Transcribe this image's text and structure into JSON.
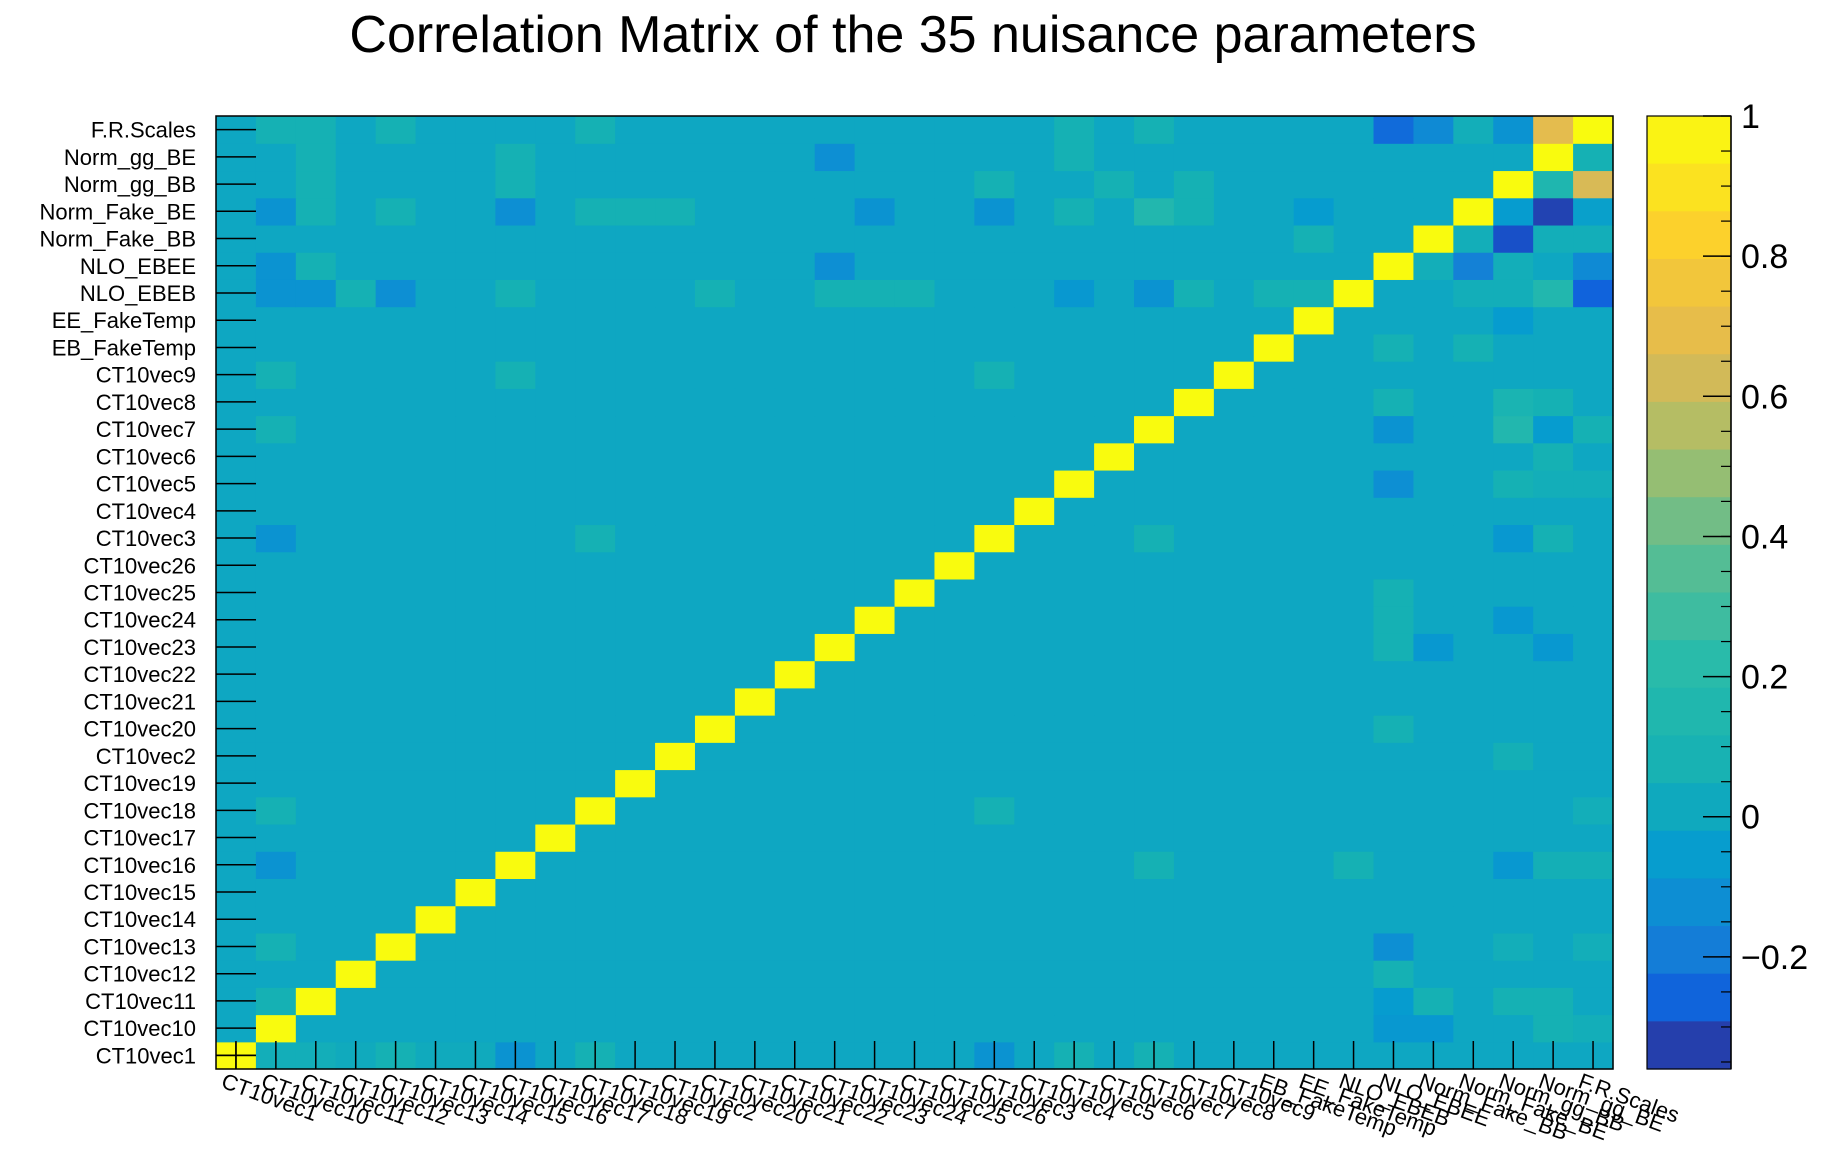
{
  "chart_data": {
    "type": "heatmap",
    "title": "Correlation Matrix of the 35 nuisance parameters",
    "labels": [
      "CT10vec1",
      "CT10vec10",
      "CT10vec11",
      "CT10vec12",
      "CT10vec13",
      "CT10vec14",
      "CT10vec15",
      "CT10vec16",
      "CT10vec17",
      "CT10vec18",
      "CT10vec19",
      "CT10vec2",
      "CT10vec20",
      "CT10vec21",
      "CT10vec22",
      "CT10vec23",
      "CT10vec24",
      "CT10vec25",
      "CT10vec26",
      "CT10vec3",
      "CT10vec4",
      "CT10vec5",
      "CT10vec6",
      "CT10vec7",
      "CT10vec8",
      "CT10vec9",
      "EB_FakeTemp",
      "EE_FakeTemp",
      "NLO_EBEB",
      "NLO_EBEE",
      "Norm_Fake_BB",
      "Norm_Fake_BE",
      "Norm_gg_BB",
      "Norm_gg_BE",
      "F.R.Scales"
    ],
    "zlim": [
      -0.36,
      1.0
    ],
    "z_ticks": [
      "1",
      "0.8",
      "0.6",
      "0.4",
      "0.2",
      "0",
      "−0.2"
    ],
    "z_tick_values": [
      1.0,
      0.8,
      0.6,
      0.4,
      0.2,
      0.0,
      -0.2
    ],
    "offdiag": [
      [
        1,
        29,
        -0.08
      ],
      [
        1,
        30,
        -0.08
      ],
      [
        1,
        33,
        0.06
      ],
      [
        1,
        34,
        0.04
      ],
      [
        2,
        29,
        -0.06
      ],
      [
        2,
        30,
        0.06
      ],
      [
        2,
        32,
        0.06
      ],
      [
        2,
        33,
        0.06
      ],
      [
        4,
        29,
        -0.12
      ],
      [
        4,
        32,
        0.04
      ],
      [
        4,
        34,
        0.04
      ],
      [
        3,
        29,
        0.06
      ],
      [
        7,
        28,
        0.06
      ],
      [
        7,
        32,
        -0.08
      ],
      [
        7,
        33,
        0.05
      ],
      [
        7,
        34,
        0.05
      ],
      [
        9,
        34,
        0.04
      ],
      [
        11,
        32,
        0.05
      ],
      [
        12,
        29,
        0.06
      ],
      [
        15,
        29,
        0.06
      ],
      [
        15,
        30,
        -0.08
      ],
      [
        15,
        33,
        -0.08
      ],
      [
        16,
        29,
        0.06
      ],
      [
        16,
        32,
        -0.08
      ],
      [
        17,
        29,
        0.06
      ],
      [
        19,
        32,
        -0.08
      ],
      [
        19,
        33,
        0.06
      ],
      [
        21,
        29,
        -0.12
      ],
      [
        21,
        32,
        0.06
      ],
      [
        21,
        33,
        0.04
      ],
      [
        21,
        34,
        0.04
      ],
      [
        22,
        33,
        0.06
      ],
      [
        23,
        29,
        -0.1
      ],
      [
        23,
        32,
        0.16
      ],
      [
        23,
        33,
        -0.06
      ],
      [
        23,
        34,
        0.06
      ],
      [
        24,
        29,
        0.06
      ],
      [
        24,
        32,
        0.1
      ],
      [
        24,
        33,
        0.06
      ],
      [
        26,
        29,
        0.06
      ],
      [
        26,
        31,
        0.06
      ],
      [
        27,
        32,
        -0.06
      ],
      [
        28,
        29,
        0.0
      ],
      [
        28,
        30,
        0.0
      ],
      [
        28,
        31,
        0.04
      ],
      [
        28,
        32,
        0.04
      ],
      [
        28,
        33,
        0.16
      ],
      [
        28,
        34,
        -0.26
      ],
      [
        29,
        30,
        0.04
      ],
      [
        29,
        31,
        -0.18
      ],
      [
        29,
        32,
        0.04
      ],
      [
        29,
        34,
        -0.14
      ],
      [
        30,
        31,
        0.04
      ],
      [
        30,
        32,
        -0.3
      ],
      [
        30,
        33,
        0.04
      ],
      [
        30,
        34,
        0.04
      ],
      [
        31,
        32,
        -0.06
      ],
      [
        31,
        33,
        -0.32
      ],
      [
        31,
        34,
        -0.04
      ],
      [
        32,
        33,
        0.14
      ],
      [
        32,
        34,
        0.64
      ],
      [
        33,
        34,
        0.06
      ],
      [
        34,
        29,
        -0.24
      ],
      [
        34,
        30,
        -0.14
      ],
      [
        34,
        31,
        0.04
      ],
      [
        34,
        32,
        -0.1
      ],
      [
        34,
        33,
        0.68
      ],
      [
        0,
        1,
        0.04
      ],
      [
        0,
        2,
        0.04
      ],
      [
        0,
        3,
        0.02
      ],
      [
        0,
        4,
        0.06
      ],
      [
        0,
        5,
        0.02
      ],
      [
        0,
        6,
        0.02
      ],
      [
        0,
        7,
        -0.1
      ],
      [
        0,
        9,
        0.06
      ],
      [
        0,
        19,
        -0.1
      ],
      [
        0,
        21,
        0.06
      ],
      [
        0,
        23,
        0.06
      ],
      [
        28,
        1,
        -0.1
      ],
      [
        28,
        2,
        -0.1
      ],
      [
        28,
        3,
        0.06
      ],
      [
        28,
        4,
        -0.12
      ],
      [
        28,
        7,
        0.06
      ],
      [
        28,
        12,
        0.06
      ],
      [
        28,
        15,
        0.06
      ],
      [
        28,
        16,
        0.06
      ],
      [
        28,
        17,
        0.06
      ],
      [
        28,
        21,
        -0.08
      ],
      [
        28,
        23,
        -0.1
      ],
      [
        28,
        24,
        0.06
      ],
      [
        28,
        26,
        0.06
      ],
      [
        28,
        27,
        0.06
      ],
      [
        29,
        1,
        -0.1
      ],
      [
        29,
        2,
        0.06
      ],
      [
        29,
        15,
        -0.12
      ],
      [
        31,
        1,
        -0.1
      ],
      [
        31,
        2,
        0.06
      ],
      [
        31,
        4,
        0.06
      ],
      [
        31,
        7,
        -0.12
      ],
      [
        31,
        9,
        0.06
      ],
      [
        31,
        10,
        0.06
      ],
      [
        31,
        11,
        0.06
      ],
      [
        31,
        16,
        -0.1
      ],
      [
        31,
        19,
        -0.1
      ],
      [
        31,
        21,
        0.06
      ],
      [
        31,
        23,
        0.16
      ],
      [
        31,
        24,
        0.06
      ],
      [
        31,
        27,
        -0.06
      ],
      [
        32,
        2,
        0.06
      ],
      [
        32,
        7,
        0.06
      ],
      [
        32,
        19,
        0.06
      ],
      [
        32,
        22,
        0.06
      ],
      [
        32,
        24,
        0.06
      ],
      [
        33,
        2,
        0.06
      ],
      [
        33,
        7,
        0.06
      ],
      [
        33,
        15,
        -0.12
      ],
      [
        33,
        21,
        0.06
      ],
      [
        34,
        1,
        0.06
      ],
      [
        34,
        2,
        0.06
      ],
      [
        34,
        4,
        0.06
      ],
      [
        34,
        9,
        0.06
      ],
      [
        34,
        21,
        0.06
      ],
      [
        34,
        23,
        0.06
      ],
      [
        30,
        27,
        0.06
      ],
      [
        25,
        1,
        0.06
      ],
      [
        25,
        7,
        0.06
      ],
      [
        25,
        19,
        0.06
      ],
      [
        23,
        1,
        0.06
      ],
      [
        19,
        1,
        -0.1
      ],
      [
        19,
        9,
        0.06
      ],
      [
        19,
        23,
        0.06
      ],
      [
        9,
        1,
        0.06
      ],
      [
        9,
        19,
        0.06
      ],
      [
        7,
        1,
        -0.1
      ],
      [
        7,
        23,
        0.06
      ],
      [
        4,
        1,
        0.06
      ],
      [
        2,
        1,
        0.06
      ]
    ]
  }
}
